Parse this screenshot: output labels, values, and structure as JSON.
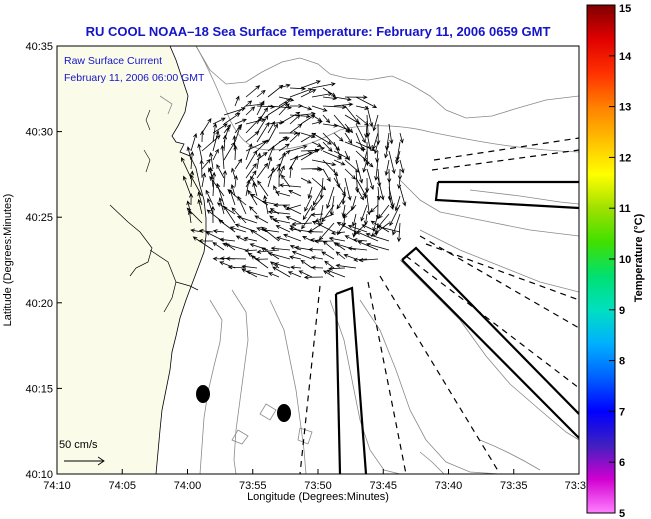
{
  "title": "RU COOL  NOAA–18  Sea Surface Temperature:  February 11, 2006 0659 GMT",
  "annotation": {
    "line1": "Raw Surface Current",
    "line2": "February 11, 2006 06:00 GMT"
  },
  "scale_label": "50 cm/s",
  "x_axis": {
    "label": "Longitude (Degrees:Minutes)",
    "ticks": [
      "74:10",
      "74:05",
      "74:00",
      "73:55",
      "73:50",
      "73:45",
      "73:40",
      "73:35",
      "73:3"
    ]
  },
  "y_axis": {
    "label": "Latitude (Degrees:Minutes)",
    "ticks": [
      "40:35",
      "40:30",
      "40:25",
      "40:20",
      "40:15",
      "40:10"
    ]
  },
  "colorbar": {
    "label": "Temperature (°C)",
    "ticks": [
      "15",
      "14",
      "13",
      "12",
      "11",
      "10",
      "9",
      "8",
      "7",
      "6",
      "5"
    ],
    "colors": [
      "#ff80ff",
      "#d000d0",
      "#4020c0",
      "#0000ff",
      "#0060ff",
      "#00b0ff",
      "#00e0c0",
      "#00e070",
      "#40e000",
      "#a0e000",
      "#ffff00",
      "#ffc000",
      "#ff8000",
      "#ff3000",
      "#e00000",
      "#800000"
    ]
  },
  "map": {
    "land_color": "#fbfbea",
    "station_markers": 2
  }
}
